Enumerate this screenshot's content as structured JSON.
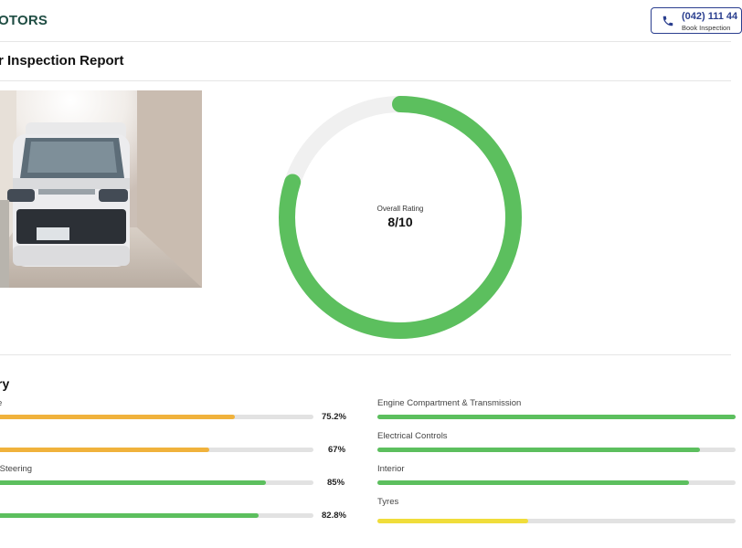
{
  "header": {
    "logo_text": "OTORS",
    "cta_number": "(042) 111 44",
    "cta_subtext": "Book Inspection"
  },
  "page": {
    "title": "r Inspection Report"
  },
  "photo": {
    "icon": "car-photo"
  },
  "rating": {
    "label": "Overall Rating",
    "value_text": "8/10",
    "value": 8,
    "max": 10,
    "arc_color": "#5cbf5e",
    "track_color": "#f0f0f0"
  },
  "summary": {
    "title": "ry",
    "left": [
      {
        "label": "e",
        "percent_text": "75.2%",
        "percent": 75.2,
        "color": "#f0b23c"
      },
      {
        "label": "",
        "percent_text": "67%",
        "percent": 67,
        "color": "#f0b23c"
      },
      {
        "label": "/Steering",
        "percent_text": "85%",
        "percent": 85,
        "color": "#5cbf5e"
      },
      {
        "label": "",
        "percent_text": "82.8%",
        "percent": 82.8,
        "color": "#5cbf5e"
      }
    ],
    "right": [
      {
        "label": "Engine Compartment & Transmission",
        "percent": 100,
        "color": "#5cbf5e"
      },
      {
        "label": "Electrical Controls",
        "percent": 90,
        "color": "#5cbf5e"
      },
      {
        "label": "Interior",
        "percent": 87,
        "color": "#5cbf5e"
      },
      {
        "label": "Tyres",
        "percent": 42,
        "color": "#f0dd3a"
      }
    ]
  }
}
